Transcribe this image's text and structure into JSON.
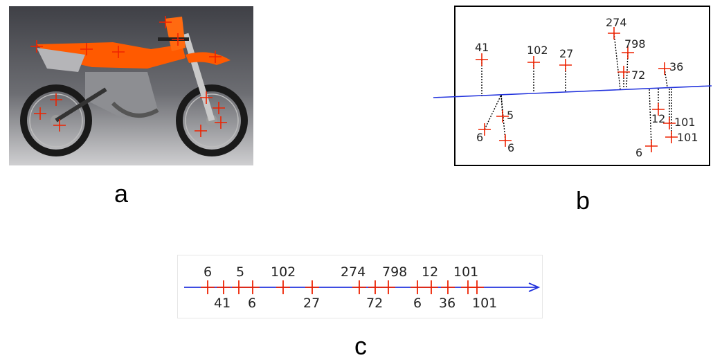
{
  "colors": {
    "cross": "#ee2200",
    "line": "#2233dd",
    "frame": "#000000",
    "photo_bg_top": "#3f4046",
    "photo_bg_bottom": "#c9c9cb",
    "bike_orange": "#ff5a00"
  },
  "labels": {
    "a": "a",
    "b": "b",
    "c": "c"
  },
  "panel_b": {
    "labels": [
      "41",
      "102",
      "27",
      "274",
      "798",
      "72",
      "36",
      "5",
      "6",
      "6",
      "12",
      "101",
      "6",
      "101"
    ]
  },
  "panel_c": {
    "labels_above": [
      "6",
      "5",
      "102",
      "274",
      "798",
      "12",
      "101"
    ],
    "labels_below": [
      "41",
      "6",
      "27",
      "72",
      "6",
      "36",
      "101"
    ]
  }
}
